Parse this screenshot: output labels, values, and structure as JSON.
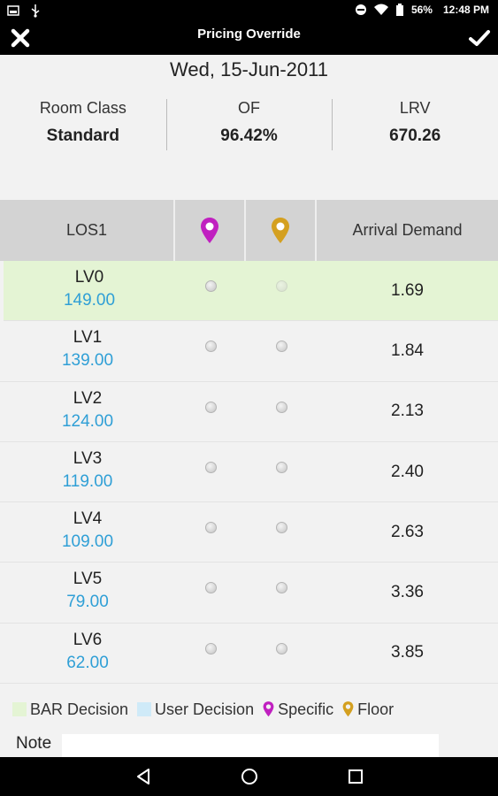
{
  "status_bar": {
    "battery": "56%",
    "time": "12:48 PM"
  },
  "app_bar": {
    "title": "Pricing Override"
  },
  "date": "Wed, 15-Jun-2011",
  "summary": [
    {
      "label": "Room Class",
      "value": "Standard"
    },
    {
      "label": "OF",
      "value": "96.42%"
    },
    {
      "label": "LRV",
      "value": "670.26"
    }
  ],
  "table": {
    "headers": {
      "los": "LOS1",
      "arrival": "Arrival Demand"
    },
    "rows": [
      {
        "level": "LV0",
        "price": "149.00",
        "demand": "1.69"
      },
      {
        "level": "LV1",
        "price": "139.00",
        "demand": "1.84"
      },
      {
        "level": "LV2",
        "price": "124.00",
        "demand": "2.13"
      },
      {
        "level": "LV3",
        "price": "119.00",
        "demand": "2.40"
      },
      {
        "level": "LV4",
        "price": "109.00",
        "demand": "2.63"
      },
      {
        "level": "LV5",
        "price": "79.00",
        "demand": "3.36"
      },
      {
        "level": "LV6",
        "price": "62.00",
        "demand": "3.85"
      }
    ]
  },
  "legend": {
    "bar_decision": "BAR Decision",
    "user_decision": "User Decision",
    "specific": "Specific",
    "floor": "Floor"
  },
  "note": {
    "label": "Note",
    "value": ""
  },
  "colors": {
    "bar_decision": "#e4f4d4",
    "user_decision": "#cfeaf8",
    "specific": "#c020c0",
    "floor": "#d4a020",
    "price": "#2f9fd6"
  }
}
